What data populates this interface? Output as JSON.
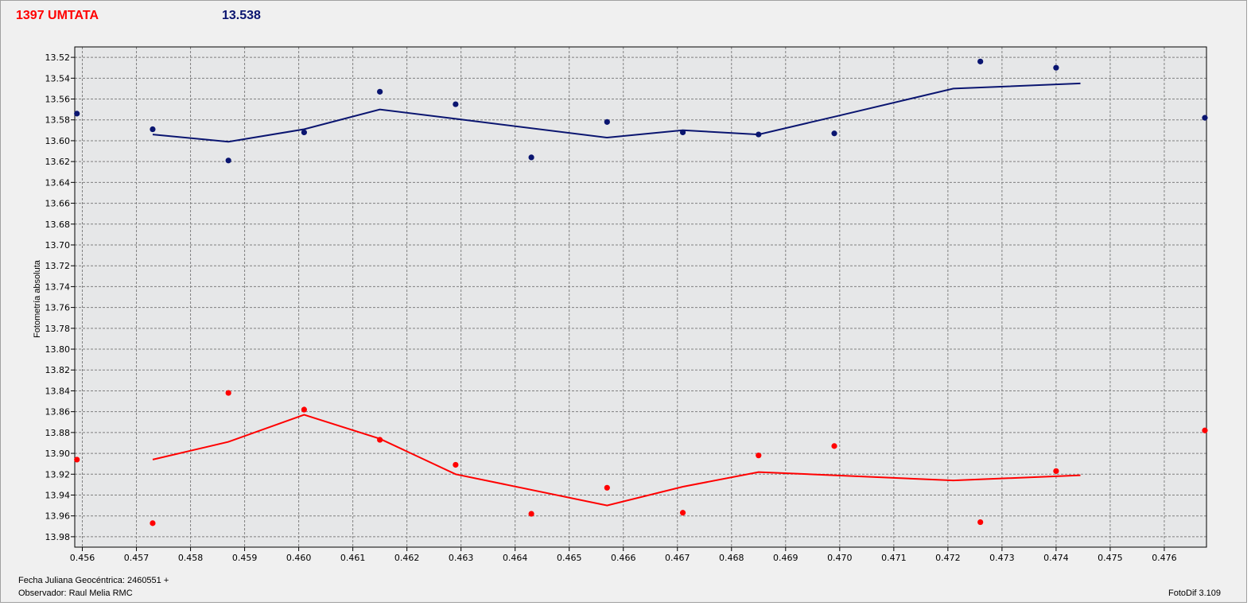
{
  "header": {
    "object": "1397 UMTATA",
    "magnitude": "13.538"
  },
  "footer": {
    "date_label": "Fecha Juliana Geocéntrica: 2460551 +",
    "observer": "Observador: Raul Melia RMC",
    "version": "FotoDif 3.109"
  },
  "chart_data": {
    "type": "scatter",
    "ylabel": "Fotometría absoluta",
    "y_inverted": true,
    "xlim": [
      0.45586,
      0.47678
    ],
    "ylim": [
      13.51,
      13.99
    ],
    "grid": true,
    "x_ticks": [
      "0.456",
      "0.457",
      "0.458",
      "0.459",
      "0.460",
      "0.461",
      "0.462",
      "0.463",
      "0.464",
      "0.465",
      "0.466",
      "0.467",
      "0.468",
      "0.469",
      "0.470",
      "0.471",
      "0.472",
      "0.473",
      "0.474",
      "0.475",
      "0.476"
    ],
    "y_ticks": [
      "13.52",
      "13.54",
      "13.56",
      "13.58",
      "13.60",
      "13.62",
      "13.64",
      "13.66",
      "13.68",
      "13.70",
      "13.72",
      "13.74",
      "13.76",
      "13.78",
      "13.80",
      "13.82",
      "13.84",
      "13.86",
      "13.88",
      "13.90",
      "13.92",
      "13.94",
      "13.96",
      "13.98"
    ],
    "series": [
      {
        "color": "#0a1570",
        "points": [
          {
            "x": 0.4559,
            "y": 13.574
          },
          {
            "x": 0.4573,
            "y": 13.589
          },
          {
            "x": 0.4587,
            "y": 13.619
          },
          {
            "x": 0.4601,
            "y": 13.592
          },
          {
            "x": 0.4615,
            "y": 13.553
          },
          {
            "x": 0.4629,
            "y": 13.565
          },
          {
            "x": 0.4643,
            "y": 13.616
          },
          {
            "x": 0.4657,
            "y": 13.582
          },
          {
            "x": 0.4671,
            "y": 13.592
          },
          {
            "x": 0.4685,
            "y": 13.594
          },
          {
            "x": 0.4699,
            "y": 13.593
          },
          {
            "x": 0.4726,
            "y": 13.524
          },
          {
            "x": 0.474,
            "y": 13.53
          },
          {
            "x": 0.47675,
            "y": 13.578
          }
        ],
        "trend": [
          {
            "x": 0.4573,
            "y": 13.594
          },
          {
            "x": 0.4587,
            "y": 13.601
          },
          {
            "x": 0.4601,
            "y": 13.589
          },
          {
            "x": 0.4615,
            "y": 13.57
          },
          {
            "x": 0.4629,
            "y": 13.579
          },
          {
            "x": 0.4657,
            "y": 13.597
          },
          {
            "x": 0.4671,
            "y": 13.59
          },
          {
            "x": 0.4685,
            "y": 13.594
          },
          {
            "x": 0.4699,
            "y": 13.577
          },
          {
            "x": 0.4721,
            "y": 13.55
          },
          {
            "x": 0.47445,
            "y": 13.545
          }
        ]
      },
      {
        "color": "#ff0000",
        "points": [
          {
            "x": 0.4559,
            "y": 13.906
          },
          {
            "x": 0.4573,
            "y": 13.967
          },
          {
            "x": 0.4587,
            "y": 13.842
          },
          {
            "x": 0.4601,
            "y": 13.858
          },
          {
            "x": 0.4615,
            "y": 13.887
          },
          {
            "x": 0.4629,
            "y": 13.911
          },
          {
            "x": 0.4643,
            "y": 13.958
          },
          {
            "x": 0.4657,
            "y": 13.933
          },
          {
            "x": 0.4671,
            "y": 13.957
          },
          {
            "x": 0.4685,
            "y": 13.902
          },
          {
            "x": 0.4699,
            "y": 13.893
          },
          {
            "x": 0.4726,
            "y": 13.966
          },
          {
            "x": 0.474,
            "y": 13.917
          },
          {
            "x": 0.47675,
            "y": 13.878
          }
        ],
        "trend": [
          {
            "x": 0.4573,
            "y": 13.906
          },
          {
            "x": 0.4587,
            "y": 13.889
          },
          {
            "x": 0.4601,
            "y": 13.863
          },
          {
            "x": 0.4615,
            "y": 13.886
          },
          {
            "x": 0.4629,
            "y": 13.92
          },
          {
            "x": 0.4657,
            "y": 13.95
          },
          {
            "x": 0.4671,
            "y": 13.932
          },
          {
            "x": 0.4685,
            "y": 13.918
          },
          {
            "x": 0.4721,
            "y": 13.926
          },
          {
            "x": 0.47445,
            "y": 13.921
          }
        ]
      }
    ]
  }
}
